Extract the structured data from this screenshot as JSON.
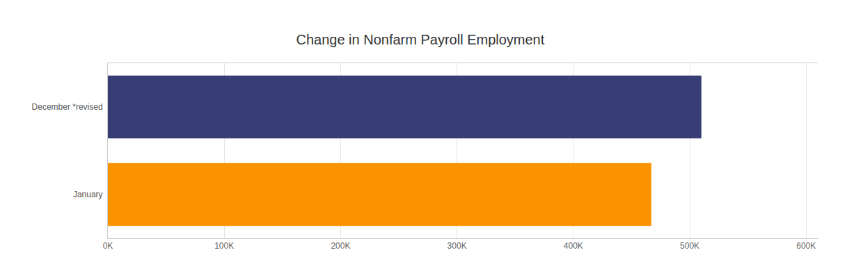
{
  "chart_data": {
    "type": "bar",
    "title": "Change in Nonfarm Payroll Employment",
    "orientation": "horizontal",
    "categories": [
      "December *revised",
      "January"
    ],
    "values": [
      510000,
      467000
    ],
    "colors": [
      "#383e75",
      "#fb9200"
    ],
    "xlim": [
      0,
      610000
    ],
    "xticks": [
      {
        "value": 0,
        "label": "0K"
      },
      {
        "value": 100000,
        "label": "100K"
      },
      {
        "value": 200000,
        "label": "200K"
      },
      {
        "value": 300000,
        "label": "300K"
      },
      {
        "value": 400000,
        "label": "400K"
      },
      {
        "value": 500000,
        "label": "500K"
      },
      {
        "value": 600000,
        "label": "600K"
      }
    ],
    "grid": true
  }
}
